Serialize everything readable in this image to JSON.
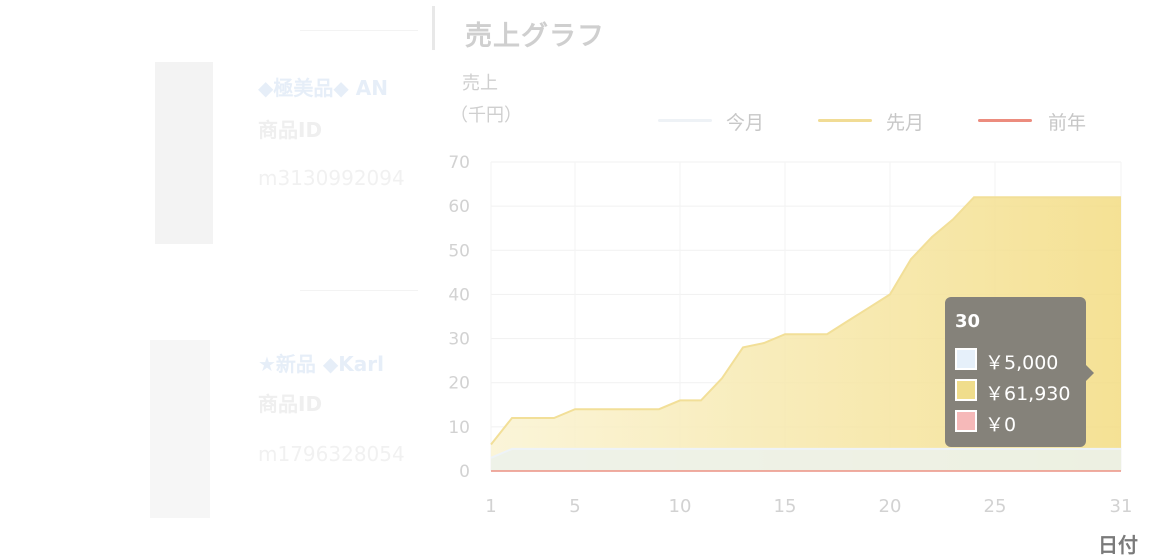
{
  "page": {
    "title": "売上グラフ"
  },
  "background_list": {
    "items": [
      {
        "title": "◆極美品◆ AN",
        "id_label": "商品ID",
        "id_value": "m3130992094"
      },
      {
        "title": "★新品 ◆Karl",
        "id_label": "商品ID",
        "id_value": "m1796328054"
      }
    ]
  },
  "tooltip": {
    "title": "30",
    "rows": [
      {
        "value": "￥5,000",
        "color": "#e6f0fa"
      },
      {
        "value": "￥61,930",
        "color": "#f0dd8c"
      },
      {
        "value": "￥0",
        "color": "#f6b9b9"
      }
    ]
  },
  "chart_data": {
    "type": "area",
    "ylabel": "売上",
    "yunit": "（千円）",
    "xlabel": "日付",
    "ylim": [
      0,
      70
    ],
    "yticks": [
      0,
      10,
      20,
      30,
      40,
      50,
      60,
      70
    ],
    "xlim": [
      1,
      31
    ],
    "xticks": [
      1,
      5,
      10,
      15,
      20,
      25,
      31
    ],
    "grid": true,
    "legend_position": "top-right",
    "series": [
      {
        "name": "今月",
        "color": "#eef3f7",
        "fill": "#ecf2ea",
        "x": [
          1,
          2,
          3,
          4,
          5,
          6,
          7,
          8,
          9,
          10,
          11,
          12,
          13,
          14,
          15,
          16,
          17,
          18,
          19,
          20,
          21,
          22,
          23,
          24,
          25,
          26,
          27,
          28,
          29,
          30,
          31
        ],
        "values": [
          3,
          5,
          5,
          5,
          5,
          5,
          5,
          5,
          5,
          5,
          5,
          5,
          5,
          5,
          5,
          5,
          5,
          5,
          5,
          5,
          5,
          5,
          5,
          5,
          5,
          5,
          5,
          5,
          5,
          5,
          5
        ]
      },
      {
        "name": "先月",
        "color": "#f2df98",
        "fill": "#f5e08f",
        "x": [
          1,
          2,
          3,
          4,
          5,
          6,
          7,
          8,
          9,
          10,
          11,
          12,
          13,
          14,
          15,
          16,
          17,
          18,
          19,
          20,
          21,
          22,
          23,
          24,
          25,
          26,
          27,
          28,
          29,
          30,
          31
        ],
        "values": [
          6,
          12,
          12,
          12,
          14,
          14,
          14,
          14,
          14,
          16,
          16,
          21,
          28,
          29,
          31,
          31,
          31,
          34,
          37,
          40,
          48,
          53,
          57,
          62,
          62,
          62,
          62,
          62,
          62,
          62,
          62
        ]
      },
      {
        "name": "前年",
        "color": "#ec8c7e",
        "x": [
          1,
          2,
          3,
          4,
          5,
          6,
          7,
          8,
          9,
          10,
          11,
          12,
          13,
          14,
          15,
          16,
          17,
          18,
          19,
          20,
          21,
          22,
          23,
          24,
          25,
          26,
          27,
          28,
          29,
          30,
          31
        ],
        "values": [
          0,
          0,
          0,
          0,
          0,
          0,
          0,
          0,
          0,
          0,
          0,
          0,
          0,
          0,
          0,
          0,
          0,
          0,
          0,
          0,
          0,
          0,
          0,
          0,
          0,
          0,
          0,
          0,
          0,
          0,
          0
        ]
      }
    ]
  }
}
